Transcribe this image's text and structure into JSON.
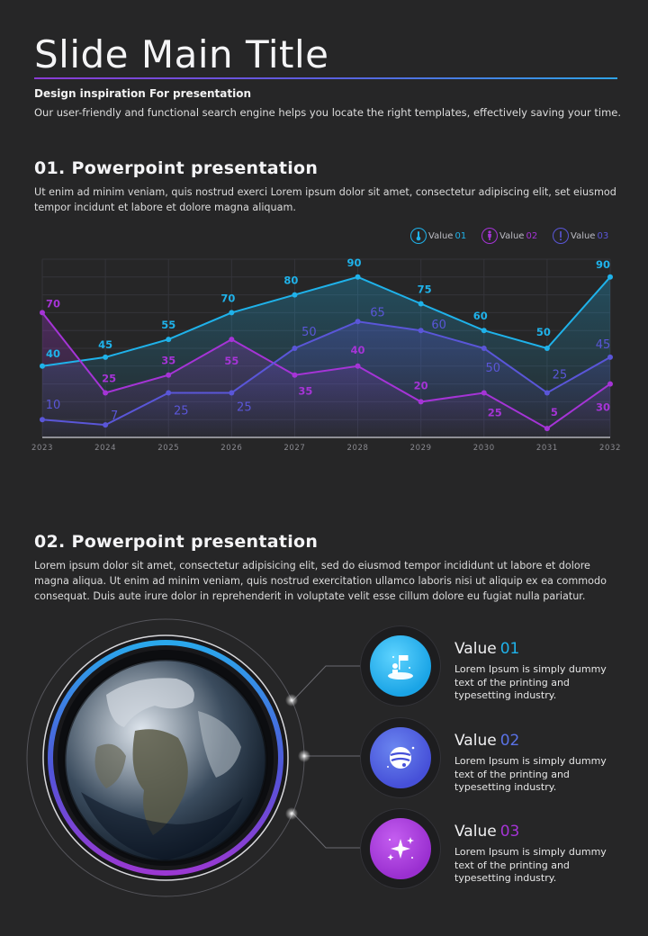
{
  "header": {
    "title": "Slide Main Title",
    "subheading": "Design inspiration For presentation",
    "subtext": "Our user-friendly and functional search engine helps you locate the right templates, effectively saving your time."
  },
  "section1": {
    "heading": "01. Powerpoint presentation",
    "paragraph": "Ut enim ad minim veniam, quis nostrud exerci  Lorem ipsum dolor sit amet, consectetur adipiscing elit, set eiusmod tempor incidunt et labore et dolore magna aliquam."
  },
  "legend": [
    {
      "prefix": "Value",
      "num": "01",
      "color": "#1fb2ea",
      "icon": "thermometer-icon"
    },
    {
      "prefix": "Value",
      "num": "02",
      "color": "#a534d6",
      "icon": "person-icon"
    },
    {
      "prefix": "Value",
      "num": "03",
      "color": "#5a56d8",
      "icon": "exclamation-icon"
    }
  ],
  "chart_data": {
    "type": "line",
    "x": [
      "2023",
      "2024",
      "2025",
      "2026",
      "2027",
      "2028",
      "2029",
      "2030",
      "2031",
      "2032"
    ],
    "ylim": [
      0,
      100
    ],
    "grid": true,
    "legend_position": "top-right",
    "series": [
      {
        "name": "Value 01",
        "color": "#1fb2ea",
        "values": [
          40,
          45,
          55,
          70,
          80,
          90,
          75,
          60,
          50,
          90
        ]
      },
      {
        "name": "Value 02",
        "color": "#a534d6",
        "values": [
          70,
          25,
          35,
          55,
          35,
          40,
          20,
          25,
          5,
          30
        ]
      },
      {
        "name": "Value 03",
        "color": "#5a56d8",
        "values": [
          10,
          7,
          25,
          25,
          50,
          65,
          60,
          50,
          25,
          45
        ]
      }
    ]
  },
  "section2": {
    "heading": "02. Powerpoint presentation",
    "paragraph": "Lorem ipsum dolor sit amet, consectetur adipisicing elit, sed do eiusmod tempor incididunt ut labore et dolore magna aliqua. Ut enim ad minim veniam, quis nostrud exercitation ullamco laboris nisi ut aliquip ex ea commodo consequat. Duis aute irure dolor in reprehenderit in voluptate velit esse cillum dolore eu fugiat nulla pariatur."
  },
  "values": [
    {
      "prefix": "Value",
      "num": "01",
      "color": "#1fb2ea",
      "icon": "astronaut-flag-icon",
      "desc": "Lorem Ipsum is simply dummy text of the printing and typesetting industry."
    },
    {
      "prefix": "Value",
      "num": "02",
      "color": "#5a56d8",
      "icon": "planet-icon",
      "desc": "Lorem Ipsum is simply dummy text of the printing and typesetting industry."
    },
    {
      "prefix": "Value",
      "num": "03",
      "color": "#a534d6",
      "icon": "sparkle-stars-icon",
      "desc": "Lorem Ipsum is simply dummy text of the printing and typesetting industry."
    }
  ],
  "earth": {
    "icon": "earth-globe-icon"
  }
}
